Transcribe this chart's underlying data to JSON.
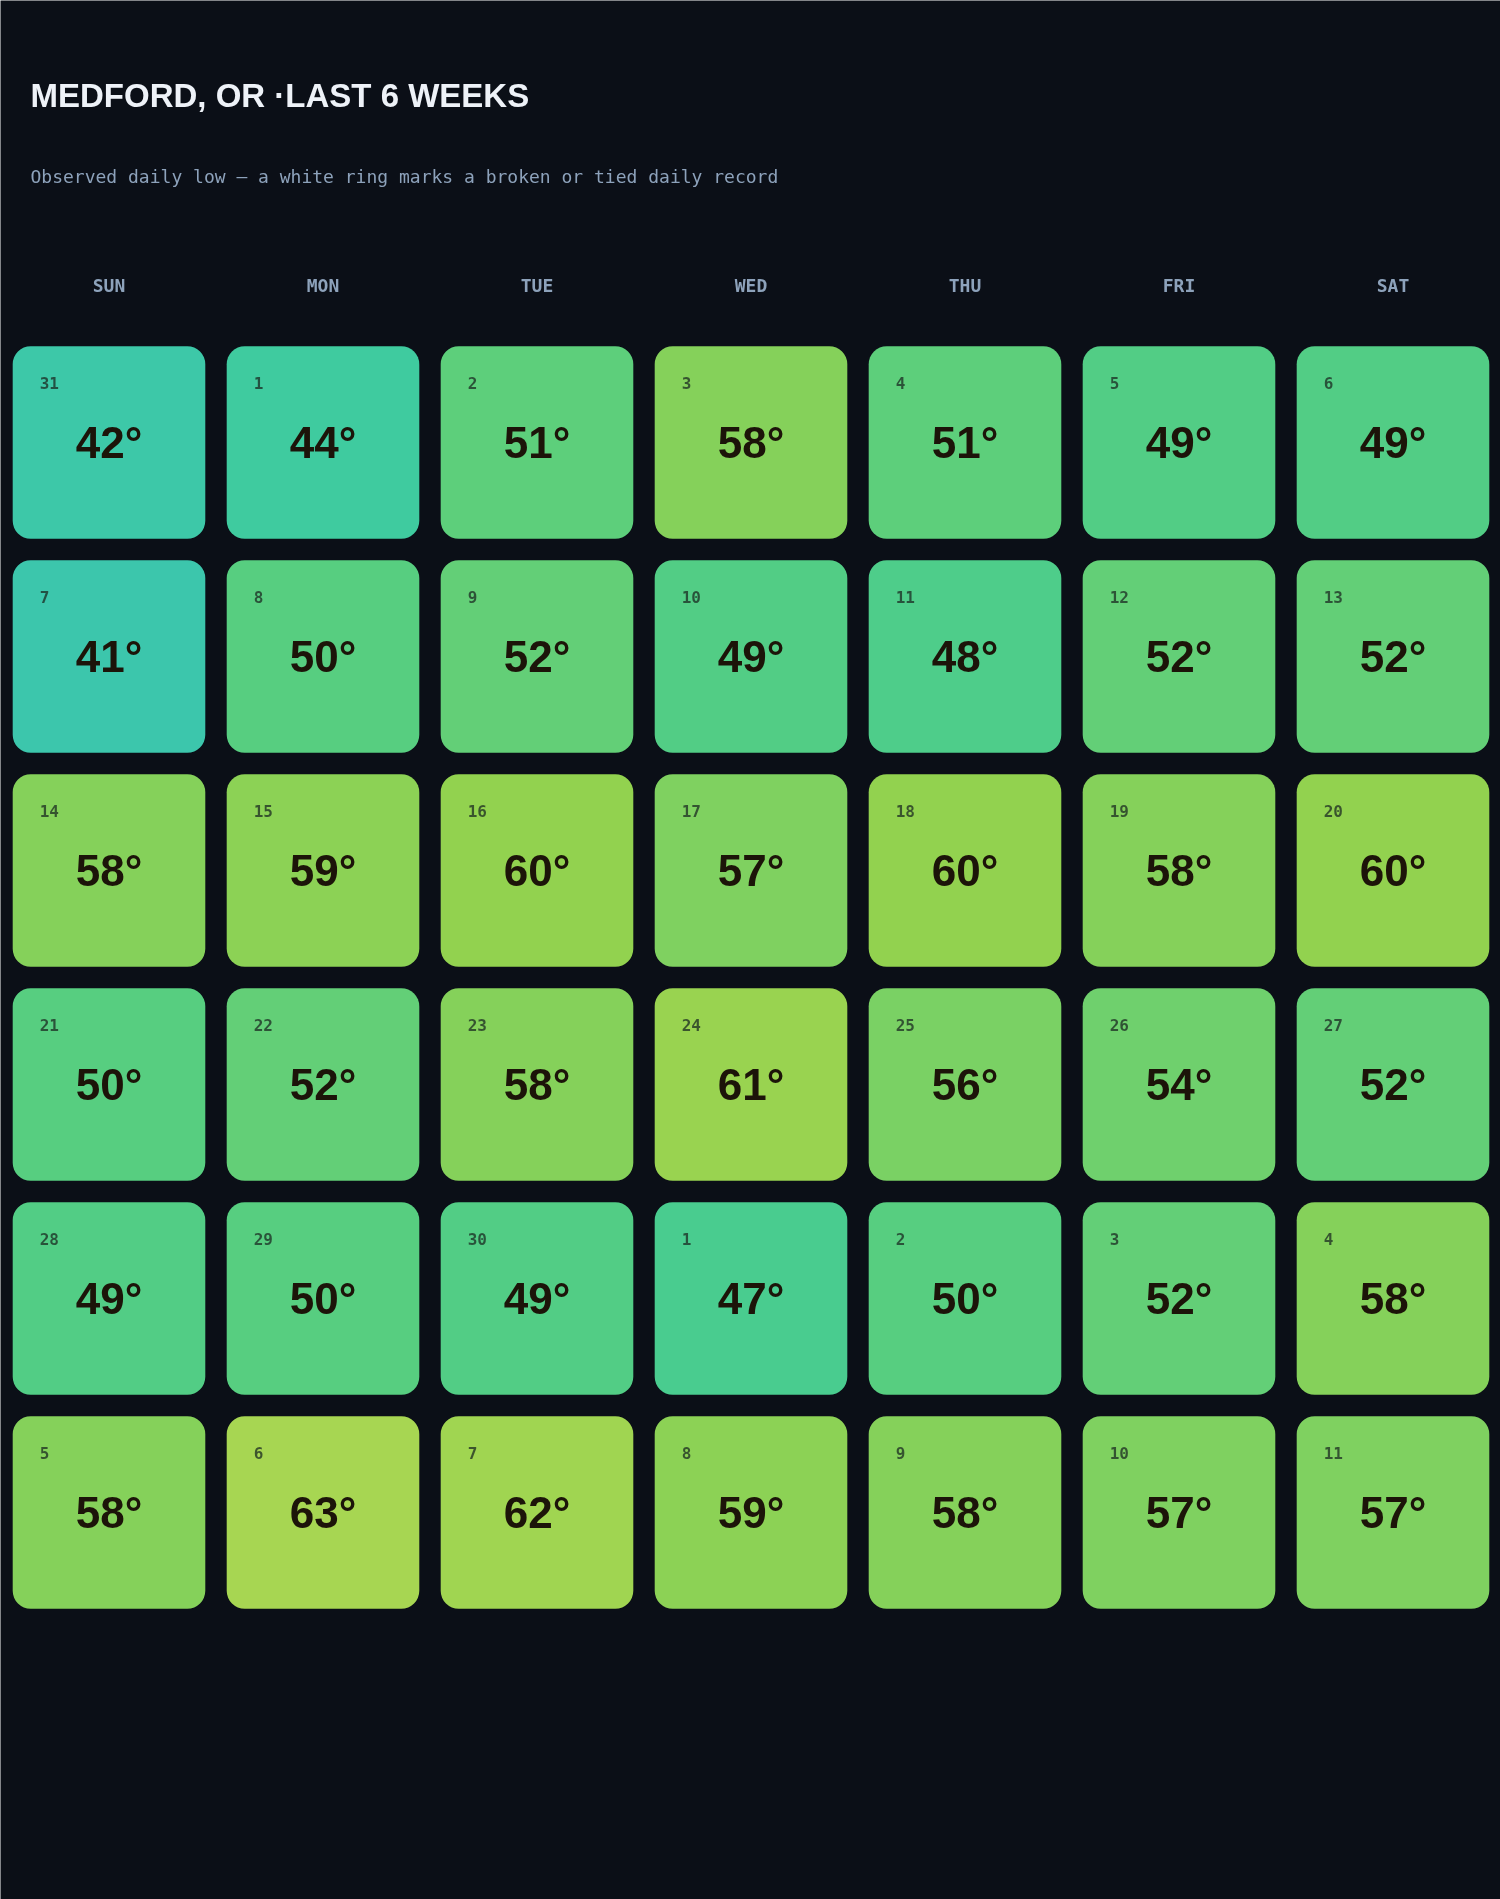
{
  "chart_data": {
    "type": "heatmap",
    "title": "MEDFORD, OR ·LAST 6 WEEKS",
    "subtitle": "Observed daily low — a white ring marks a broken or tied daily record",
    "categories": [
      "SUN",
      "MON",
      "TUE",
      "WED",
      "THU",
      "FRI",
      "SAT"
    ],
    "y_categories": [
      null,
      null,
      null,
      null,
      null,
      null
    ],
    "cells": [
      [
        42,
        44,
        51,
        58,
        51,
        49,
        49
      ],
      [
        41,
        50,
        52,
        49,
        48,
        52,
        52
      ],
      [
        58,
        59,
        60,
        57,
        60,
        58,
        60
      ],
      [
        50,
        52,
        58,
        61,
        56,
        54,
        52
      ],
      [
        49,
        50,
        49,
        47,
        50,
        52,
        58
      ],
      [
        58,
        63,
        62,
        59,
        58,
        57,
        57
      ]
    ],
    "cell_labels": [
      [
        "42°",
        "44°",
        "51°",
        "58°",
        "51°",
        "49°",
        "49°"
      ],
      [
        "41°",
        "50°",
        "52°",
        "49°",
        "48°",
        "52°",
        "52°"
      ],
      [
        "58°",
        "59°",
        "60°",
        "57°",
        "60°",
        "58°",
        "60°"
      ],
      [
        "50°",
        "52°",
        "58°",
        "61°",
        "56°",
        "54°",
        "52°"
      ],
      [
        "49°",
        "50°",
        "49°",
        "47°",
        "50°",
        "52°",
        "58°"
      ],
      [
        "58°",
        "63°",
        "62°",
        "59°",
        "58°",
        "57°",
        "57°"
      ]
    ],
    "annotations": [
      "31",
      "1",
      "2",
      "3",
      "4",
      "5",
      "6",
      "7",
      "8",
      "9",
      "10",
      "11",
      "12",
      "13",
      "14",
      "15",
      "16",
      "17",
      "18",
      "19",
      "20",
      "21",
      "22",
      "23",
      "24",
      "25",
      "26",
      "27",
      "28",
      "29",
      "30",
      "1",
      "2",
      "3",
      "4",
      "5",
      "6",
      "7",
      "8",
      "9",
      "10",
      "11"
    ]
  }
}
